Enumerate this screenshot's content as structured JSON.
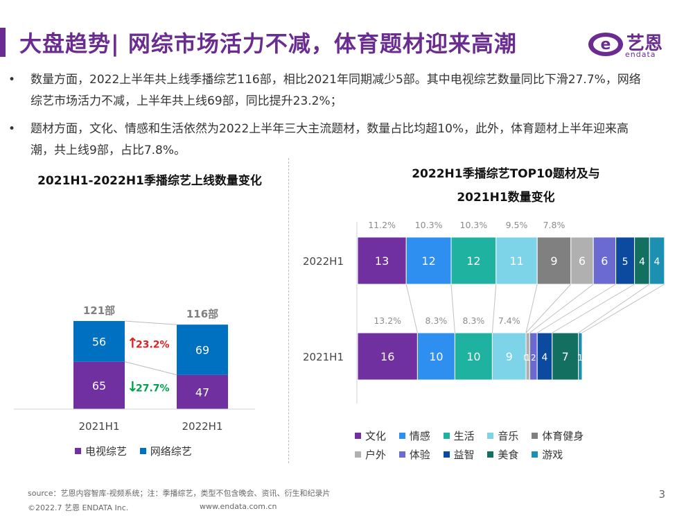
{
  "header": {
    "title": "大盘趋势| 网综市场活力不减，体育题材迎来高潮",
    "logo_text": "艺恩",
    "logo_sub": "endata",
    "logo_letter": "e"
  },
  "bullets": [
    {
      "dot": "•",
      "text": "数量方面，2022上半年共上线季播综艺116部，相比2021年同期减少5部。其中电视综艺数量同比下滑27.7%，网络综艺市场活力不减，上半年共上线69部，同比提升23.2%；"
    },
    {
      "dot": "•",
      "text": "题材方面，文化、情感和生活依然为2022上半年三大主流题材，数量占比均超10%，此外，体育题材上半年迎来高潮，共上线9部，占比7.8%。"
    }
  ],
  "colors": {
    "purple": "#6a2c91",
    "tv": "#7030a0",
    "net": "#0070c0",
    "up": "#e02020",
    "down": "#00a050",
    "gray": "#888888"
  },
  "chart_data": [
    {
      "type": "bar",
      "stacked": true,
      "title": "2021H1-2022H1季播综艺上线数量变化",
      "categories": [
        "2021H1",
        "2022H1"
      ],
      "series": [
        {
          "name": "电视综艺",
          "values": [
            65,
            47
          ],
          "color": "#7030a0"
        },
        {
          "name": "网络综艺",
          "values": [
            56,
            69
          ],
          "color": "#0070c0"
        }
      ],
      "totals": [
        "121部",
        "116部"
      ],
      "annotations": [
        {
          "series": "网络综艺",
          "arrow": "↑",
          "text": "23.2%",
          "color": "#e02020"
        },
        {
          "series": "电视综艺",
          "arrow": "↓",
          "text": "27.7%",
          "color": "#00a050"
        }
      ],
      "ylim": [
        0,
        140
      ]
    },
    {
      "type": "bar",
      "orientation": "horizontal",
      "stacked": true,
      "title_lines": [
        "2022H1季播综艺TOP10题材及与",
        "2021H1数量变化"
      ],
      "categories": [
        "2022H1",
        "2021H1"
      ],
      "series": [
        {
          "name": "文化",
          "values": [
            13,
            16
          ],
          "color": "#7030a0"
        },
        {
          "name": "情感",
          "values": [
            12,
            10
          ],
          "color": "#2e8ff0"
        },
        {
          "name": "生活",
          "values": [
            12,
            10
          ],
          "color": "#20b2a0"
        },
        {
          "name": "音乐",
          "values": [
            11,
            9
          ],
          "color": "#7dd3e8"
        },
        {
          "name": "体育健身",
          "values": [
            9,
            0
          ],
          "color": "#808080"
        },
        {
          "name": "户外",
          "values": [
            6,
            1
          ],
          "color": "#b0b0b0"
        },
        {
          "name": "体验",
          "values": [
            6,
            2
          ],
          "color": "#6a6ad0"
        },
        {
          "name": "益智",
          "values": [
            5,
            4
          ],
          "color": "#0b4a9e"
        },
        {
          "name": "美食",
          "values": [
            4,
            7
          ],
          "color": "#137060"
        },
        {
          "name": "游戏",
          "values": [
            4,
            1
          ],
          "color": "#1c90b0"
        }
      ],
      "share_labels": [
        {
          "category": "2022H1",
          "labels": [
            "11.2%",
            "10.3%",
            "10.3%",
            "9.5%",
            "7.8%"
          ]
        },
        {
          "category": "2021H1",
          "labels": [
            "13.2%",
            "8.3%",
            "8.3%",
            "7.4%"
          ]
        }
      ]
    }
  ],
  "legend": {
    "left": [
      {
        "label": "电视综艺",
        "color": "#7030a0"
      },
      {
        "label": "网络综艺",
        "color": "#0070c0"
      }
    ],
    "right_rows": [
      [
        {
          "label": "文化",
          "color": "#7030a0"
        },
        {
          "label": "情感",
          "color": "#2e8ff0"
        },
        {
          "label": "生活",
          "color": "#20b2a0"
        },
        {
          "label": "音乐",
          "color": "#7dd3e8"
        },
        {
          "label": "体育健身",
          "color": "#808080"
        }
      ],
      [
        {
          "label": "户外",
          "color": "#b0b0b0"
        },
        {
          "label": "体验",
          "color": "#6a6ad0"
        },
        {
          "label": "益智",
          "color": "#0b4a9e"
        },
        {
          "label": "美食",
          "color": "#137060"
        },
        {
          "label": "游戏",
          "color": "#1c90b0"
        }
      ]
    ]
  },
  "footer": {
    "source": "source：艺恩内容智库-视频系统；注：季播综艺，类型不包含晚会、资讯、衍生和纪录片",
    "copyright": "©2022.7 艺恩 ENDATA Inc.",
    "website": "www.endata.com.cn",
    "page": "3"
  }
}
